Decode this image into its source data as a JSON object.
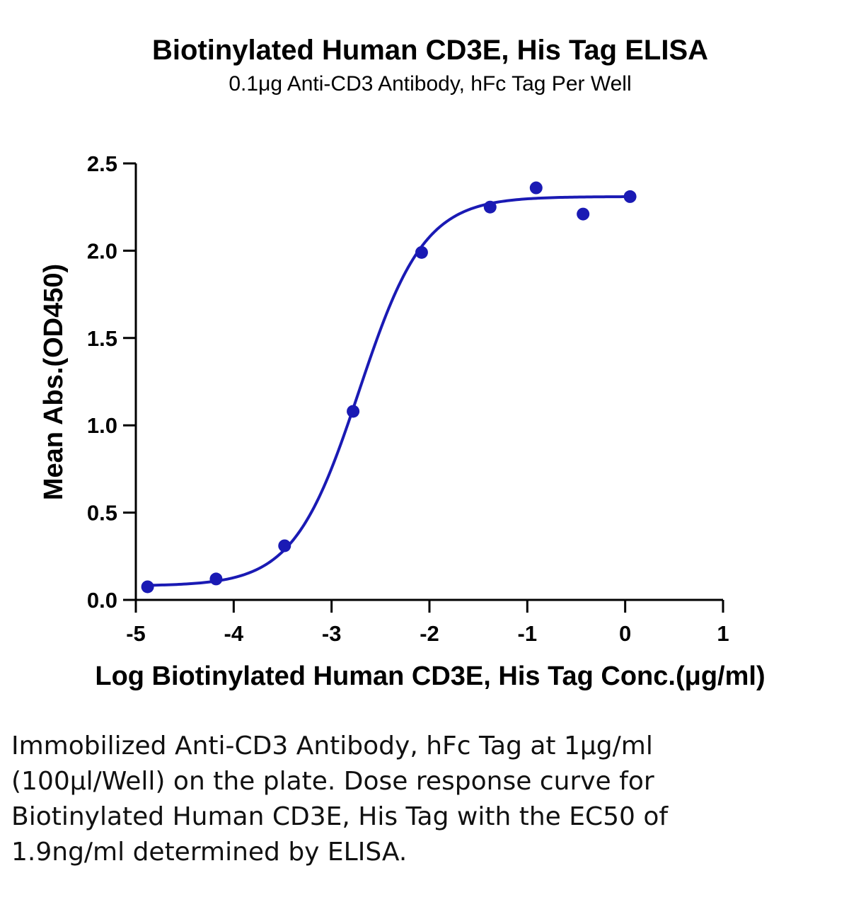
{
  "chart_data": {
    "type": "scatter",
    "title": "Biotinylated Human CD3E, His Tag ELISA",
    "subtitle": "0.1μg Anti-CD3 Antibody, hFc Tag Per Well",
    "xlabel": "Log Biotinylated Human CD3E, His Tag Conc.(μg/ml)",
    "ylabel": "Mean Abs.(OD450)",
    "xlim": [
      -5,
      1
    ],
    "ylim": [
      0,
      2.5
    ],
    "x_ticks": [
      "-5",
      "-4",
      "-3",
      "-2",
      "-1",
      "0",
      "1"
    ],
    "y_ticks": [
      "0.0",
      "0.5",
      "1.0",
      "1.5",
      "2.0",
      "2.5"
    ],
    "series": [
      {
        "points": [
          {
            "x": -4.88,
            "y": 0.075
          },
          {
            "x": -4.18,
            "y": 0.12
          },
          {
            "x": -3.48,
            "y": 0.31
          },
          {
            "x": -2.78,
            "y": 1.08
          },
          {
            "x": -2.08,
            "y": 1.99
          },
          {
            "x": -1.38,
            "y": 2.25
          },
          {
            "x": -0.91,
            "y": 2.36
          },
          {
            "x": -0.43,
            "y": 2.21
          },
          {
            "x": 0.05,
            "y": 2.31
          }
        ],
        "fit": {
          "type": "4PL",
          "bottom": 0.08,
          "top": 2.31,
          "logEC50": -2.72,
          "hill": 1.3
        }
      }
    ],
    "marker_color": "#1a1ab4",
    "curve_color": "#1a1ab4",
    "grid": false,
    "legend": "none"
  },
  "caption": "Immobilized Anti-CD3 Antibody, hFc Tag at 1μg/ml (100μl/Well) on the plate. Dose response curve for Biotinylated Human CD3E, His Tag with the EC50 of 1.9ng/ml determined by ELISA."
}
